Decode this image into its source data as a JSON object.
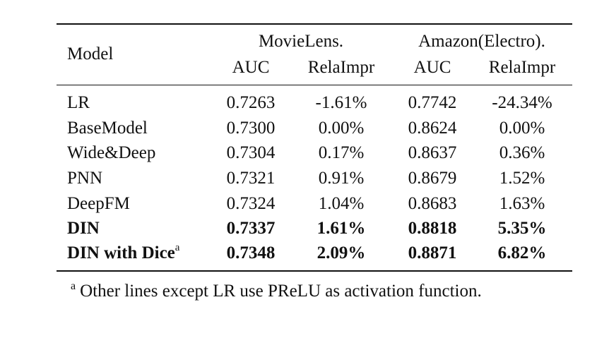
{
  "table": {
    "model_header": "Model",
    "groups": [
      {
        "name": "MovieLens.",
        "cols": [
          "AUC",
          "RelaImpr"
        ]
      },
      {
        "name": "Amazon(Electro).",
        "cols": [
          "AUC",
          "RelaImpr"
        ]
      }
    ],
    "rows": [
      {
        "model": "LR",
        "ml_auc": "0.7263",
        "ml_rel": "-1.61%",
        "am_auc": "0.7742",
        "am_rel": "-24.34%"
      },
      {
        "model": "BaseModel",
        "ml_auc": "0.7300",
        "ml_rel": "0.00%",
        "am_auc": "0.8624",
        "am_rel": "0.00%"
      },
      {
        "model": "Wide&Deep",
        "ml_auc": "0.7304",
        "ml_rel": "0.17%",
        "am_auc": "0.8637",
        "am_rel": "0.36%"
      },
      {
        "model": "PNN",
        "ml_auc": "0.7321",
        "ml_rel": "0.91%",
        "am_auc": "0.8679",
        "am_rel": "1.52%"
      },
      {
        "model": "DeepFM",
        "ml_auc": "0.7324",
        "ml_rel": "1.04%",
        "am_auc": "0.8683",
        "am_rel": "1.63%"
      },
      {
        "model": "DIN",
        "ml_auc": "0.7337",
        "ml_rel": "1.61%",
        "am_auc": "0.8818",
        "am_rel": "5.35%"
      },
      {
        "model": "DIN with Dice",
        "ml_auc": "0.7348",
        "ml_rel": "2.09%",
        "am_auc": "0.8871",
        "am_rel": "6.82%"
      }
    ],
    "last_row_sup": "a"
  },
  "footnote": {
    "mark": "a",
    "text": "Other lines except LR use PReLU as activation function."
  }
}
